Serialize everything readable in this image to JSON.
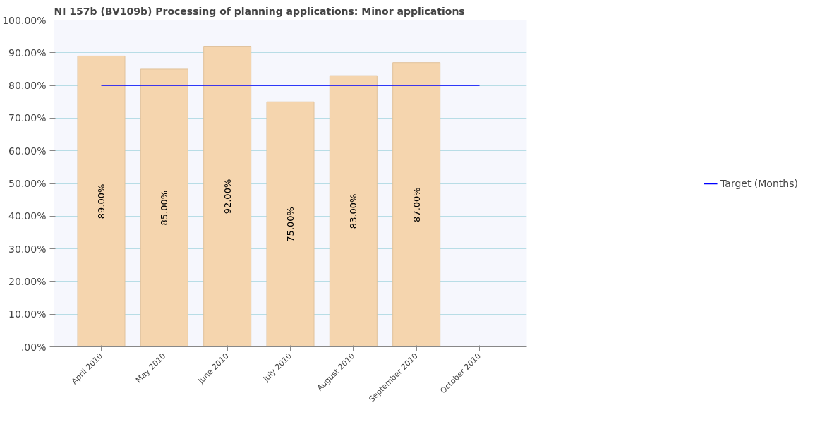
{
  "chart_data": {
    "type": "bar",
    "title": "NI 157b (BV109b) Processing of planning applications: Minor applications",
    "categories": [
      "April 2010",
      "May 2010",
      "June 2010",
      "July 2010",
      "August 2010",
      "September 2010",
      "October 2010"
    ],
    "series": [
      {
        "color": "#f5d5ae",
        "values": [
          89,
          85,
          92,
          75,
          83,
          87,
          null
        ],
        "value_labels": [
          "89.00%",
          "85.00%",
          "92.00%",
          "75.00%",
          "83.00%",
          "87.00%",
          null
        ]
      },
      {
        "type": "line",
        "name": "Target (Months)",
        "color": "#0000ff",
        "values": [
          80,
          80,
          80,
          80,
          80,
          80,
          80
        ]
      }
    ],
    "ylim": [
      0,
      100
    ],
    "yticks": [
      {
        "value": 0,
        "label": ".00%"
      },
      {
        "value": 10,
        "label": "10.00%"
      },
      {
        "value": 20,
        "label": "20.00%"
      },
      {
        "value": 30,
        "label": "30.00%"
      },
      {
        "value": 40,
        "label": "40.00%"
      },
      {
        "value": 50,
        "label": "50.00%"
      },
      {
        "value": 60,
        "label": "60.00%"
      },
      {
        "value": 70,
        "label": "70.00%"
      },
      {
        "value": 80,
        "label": "80.00%"
      },
      {
        "value": 90,
        "label": "90.00%"
      },
      {
        "value": 100,
        "label": "100.00%"
      }
    ],
    "grid": "y",
    "legend": "right",
    "marker": "none",
    "line_style": "solid"
  }
}
